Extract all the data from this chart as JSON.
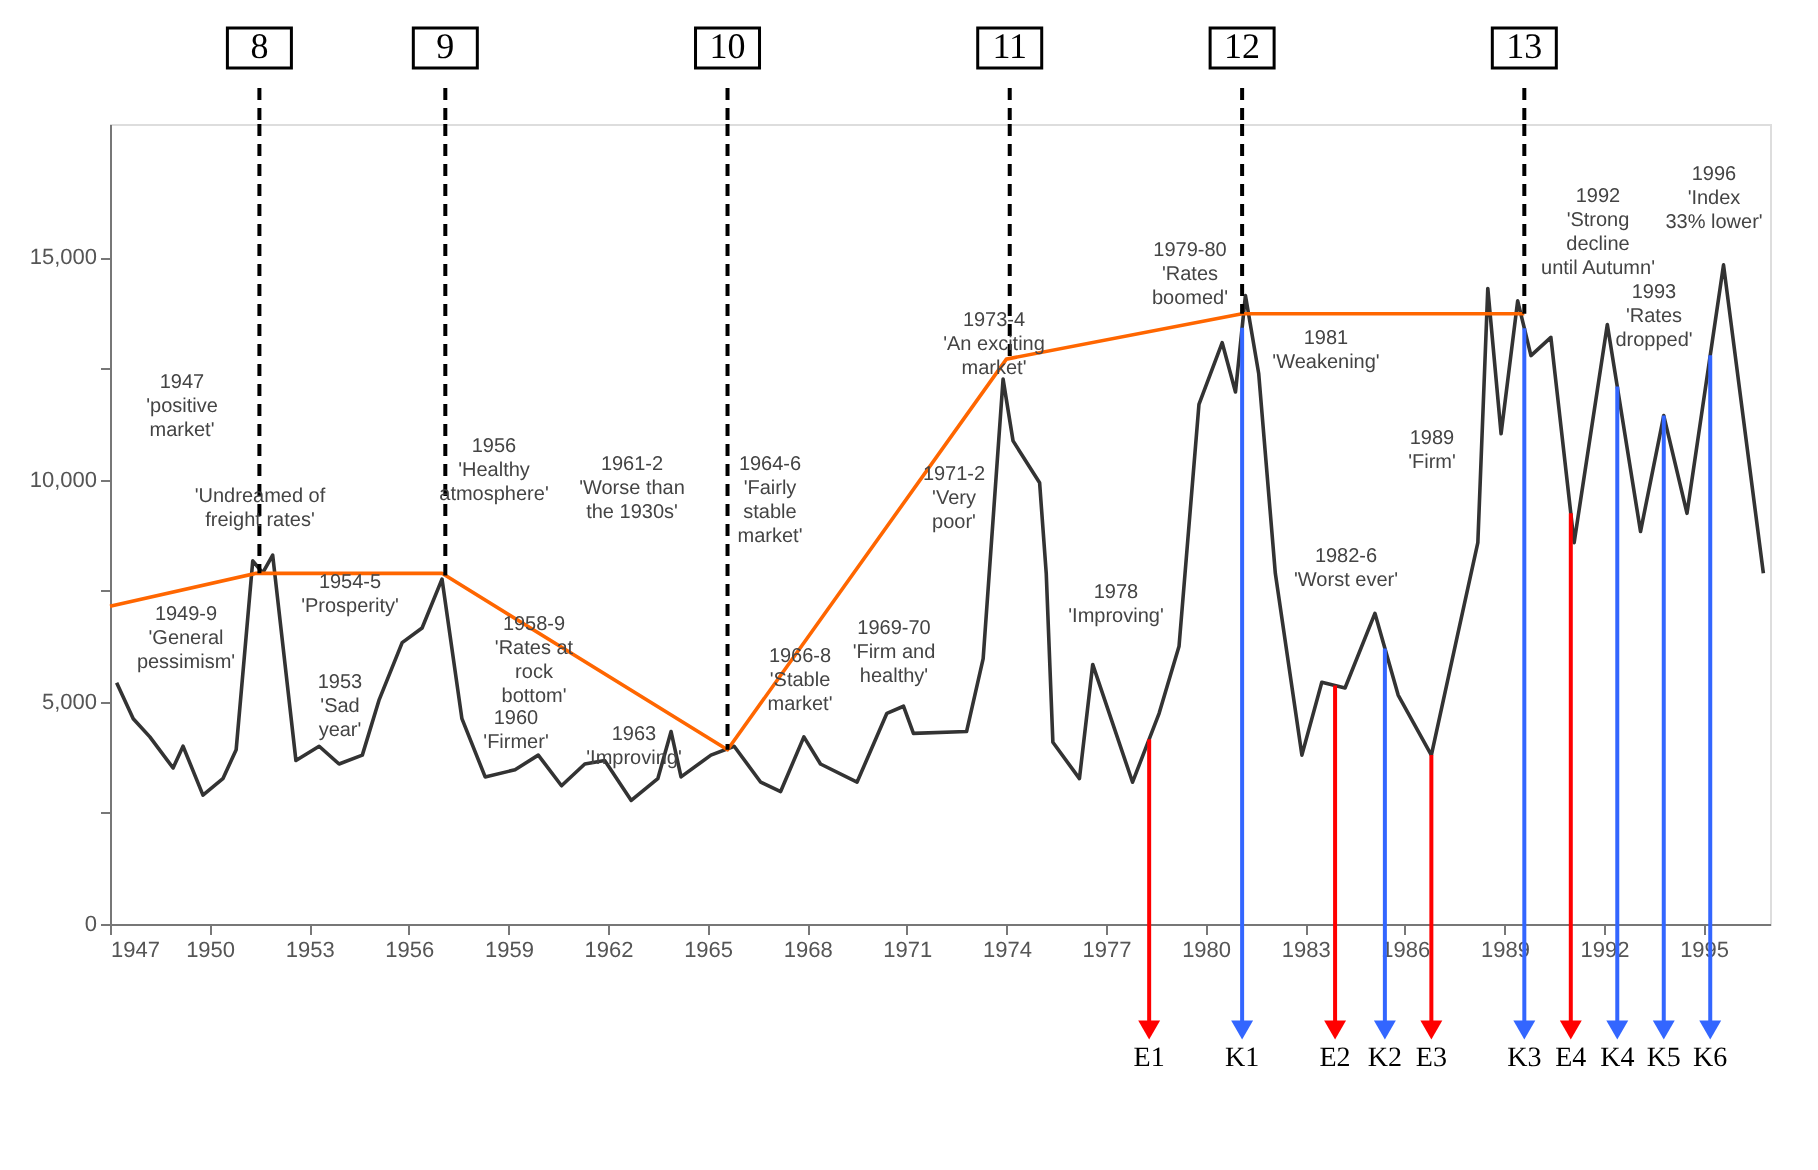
{
  "chart_data": {
    "type": "line",
    "xlim": [
      1947,
      1997
    ],
    "ylim": [
      0,
      18000
    ],
    "xticks": [
      1947,
      1950,
      1953,
      1956,
      1959,
      1962,
      1965,
      1968,
      1971,
      1974,
      1977,
      1980,
      1983,
      1986,
      1989,
      1992,
      1995
    ],
    "yticks": [
      0,
      {
        "value": 2500,
        "label": null
      },
      {
        "value": 5000,
        "label": "5,000"
      },
      {
        "value": 7500,
        "label": null
      },
      {
        "value": 10000,
        "label": "10,000"
      },
      {
        "value": 12500,
        "label": null
      },
      {
        "value": 15000,
        "label": "15,000"
      }
    ],
    "grid": false,
    "marker": "none",
    "line_style": "solid",
    "series": [
      {
        "color": "#333333",
        "x": [
          1947.2,
          1947.7,
          1948.2,
          1948.9,
          1949.2,
          1949.8,
          1950.4,
          1950.8,
          1951.3,
          1951.6,
          1951.9,
          1952.6,
          1953.3,
          1953.9,
          1954.6,
          1955.1,
          1955.8,
          1956.4,
          1957.0,
          1957.6,
          1958.3,
          1959.2,
          1959.9,
          1960.6,
          1961.3,
          1961.9,
          1962.7,
          1963.5,
          1963.9,
          1964.2,
          1965.1,
          1965.8,
          1966.6,
          1967.2,
          1967.9,
          1968.4,
          1969.5,
          1970.4,
          1970.9,
          1971.2,
          1972.8,
          1973.3,
          1973.9,
          1974.2,
          1975.0,
          1975.2,
          1975.4,
          1976.2,
          1976.6,
          1977.8,
          1978.6,
          1979.2,
          1979.8,
          1980.5,
          1980.9,
          1981.2,
          1981.6,
          1982.1,
          1982.9,
          1983.5,
          1984.2,
          1985.1,
          1985.8,
          1986.8,
          1987.6,
          1988.2,
          1988.5,
          1988.9,
          1989.4,
          1989.8,
          1990.4,
          1991.1,
          1992.1,
          1993.1,
          1993.8,
          1994.5,
          1995.6,
          1996.8
        ],
        "values": [
          5430,
          4620,
          4210,
          3510,
          4000,
          2900,
          3270,
          3920,
          8170,
          7900,
          8300,
          3680,
          4000,
          3600,
          3800,
          5030,
          6330,
          6660,
          7760,
          4620,
          3310,
          3470,
          3800,
          3110,
          3600,
          3680,
          2780,
          3270,
          4330,
          3310,
          3800,
          4000,
          3190,
          2980,
          4210,
          3600,
          3190,
          4740,
          4900,
          4290,
          4330,
          5970,
          12260,
          10870,
          9930,
          7890,
          4090,
          3270,
          5840,
          3190,
          4740,
          6250,
          11690,
          13080,
          11970,
          14140,
          12380,
          7890,
          3800,
          5440,
          5310,
          6990,
          5150,
          3800,
          6540,
          8580,
          14300,
          11030,
          14020,
          12790,
          13200,
          8580,
          13490,
          8830,
          11440,
          9240,
          14830,
          7890
        ]
      },
      {
        "color": "#ff6600",
        "x": [
          1947.0,
          1951.4,
          1957.0,
          1965.6,
          1974.0,
          1981.1,
          1989.6
        ],
        "values": [
          7150,
          7890,
          7890,
          3920,
          12710,
          13730,
          13730
        ]
      }
    ],
    "ref_lines": [
      {
        "axis": "x",
        "value": 1951.5,
        "color": "#000000",
        "line_style": "dashed"
      },
      {
        "axis": "x",
        "value": 1957.1,
        "color": "#000000",
        "line_style": "dashed"
      },
      {
        "axis": "x",
        "value": 1965.6,
        "color": "#000000",
        "line_style": "dashed"
      },
      {
        "axis": "x",
        "value": 1974.1,
        "color": "#000000",
        "line_style": "dashed"
      },
      {
        "axis": "x",
        "value": 1981.1,
        "color": "#000000",
        "line_style": "dashed"
      },
      {
        "axis": "x",
        "value": 1989.6,
        "color": "#000000",
        "line_style": "dashed"
      },
      {
        "axis": "x",
        "value": 1978.3,
        "label": "E1",
        "color": "#ff0000",
        "line_style": "solid"
      },
      {
        "axis": "x",
        "value": 1981.1,
        "label": "K1",
        "color": "#3366ff",
        "line_style": "solid"
      },
      {
        "axis": "x",
        "value": 1983.9,
        "label": "E2",
        "color": "#ff0000",
        "line_style": "solid"
      },
      {
        "axis": "x",
        "value": 1985.4,
        "label": "K2",
        "color": "#3366ff",
        "line_style": "solid"
      },
      {
        "axis": "x",
        "value": 1986.8,
        "label": "E3",
        "color": "#ff0000",
        "line_style": "solid"
      },
      {
        "axis": "x",
        "value": 1989.6,
        "label": "K3",
        "color": "#3366ff",
        "line_style": "solid"
      },
      {
        "axis": "x",
        "value": 1991.0,
        "label": "E4",
        "color": "#ff0000",
        "line_style": "solid"
      },
      {
        "axis": "x",
        "value": 1992.4,
        "label": "K4",
        "color": "#3366ff",
        "line_style": "solid"
      },
      {
        "axis": "x",
        "value": 1993.8,
        "label": "K5",
        "color": "#3366ff",
        "line_style": "solid"
      },
      {
        "axis": "x",
        "value": 1995.2,
        "label": "K6",
        "color": "#3366ff",
        "line_style": "solid"
      }
    ],
    "annotations": [
      "1947\n'positive\nmarket'",
      "'Undreamed of\nfreight rates'",
      "1949-9\n'General\npessimism'",
      "1954-5\n'Prosperity'",
      "1953\n'Sad\nyear'",
      "1956\n'Healthy\natmosphere'",
      "1958-9\n'Rates at\nrock\nbottom'",
      "1960\n'Firmer'",
      "1961-2\n'Worse than\nthe 1930s'",
      "1963\n'Improving'",
      "1964-6\n'Fairly\nstable\nmarket'",
      "1966-8\n'Stable\nmarket'",
      "1969-70\n'Firm and\nhealthy'",
      "1971-2\n'Very\npoor'",
      "1973-4\n'An exciting\nmarket'",
      "1978\n'Improving'",
      "1979-80\n'Rates\nboomed'",
      "1981\n'Weakening'",
      "1982-6\n'Worst ever'",
      "1989\n'Firm'",
      "1992\n'Strong\ndecline\nuntil Autumn'",
      "1996\n'Index\n33% lower'",
      "1993\n'Rates\ndropped'",
      "8",
      "9",
      "10",
      "11",
      "12",
      "13"
    ]
  }
}
